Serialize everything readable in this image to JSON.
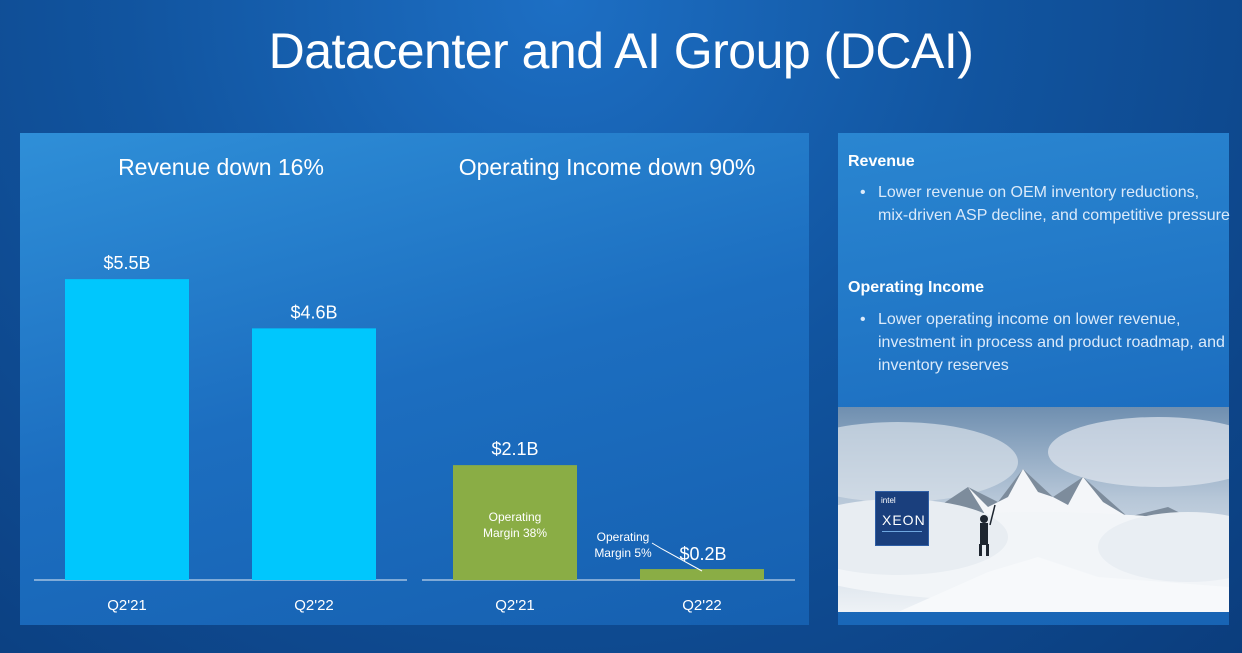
{
  "title": "Datacenter and AI Group (DCAI)",
  "chart_data": [
    {
      "type": "bar",
      "title": "Revenue down 16%",
      "categories": [
        "Q2'21",
        "Q2'22"
      ],
      "values": [
        5.5,
        4.6
      ],
      "value_labels": [
        "$5.5B",
        "$4.6B"
      ],
      "unit": "$B",
      "color": "#00c7fd"
    },
    {
      "type": "bar",
      "title": "Operating Income down 90%",
      "categories": [
        "Q2'21",
        "Q2'22"
      ],
      "values": [
        2.1,
        0.2
      ],
      "value_labels": [
        "$2.1B",
        "$0.2B"
      ],
      "annotations": [
        "Operating Margin 38%",
        "Operating Margin 5%"
      ],
      "unit": "$B",
      "color": "#8aad45"
    }
  ],
  "commentary": {
    "revenue": {
      "heading": "Revenue",
      "bullet": "Lower revenue on OEM inventory reductions, mix-driven ASP decline, and competitive pressure"
    },
    "operating_income": {
      "heading": "Operating Income",
      "bullet": "Lower operating income on lower revenue, investment in process and product roadmap, and inventory reserves"
    }
  },
  "photo": {
    "badge_brand": "intel",
    "badge_product": "XEON"
  },
  "colors": {
    "background": "#11549f",
    "revenue_bar": "#00c7fd",
    "income_bar": "#8aad45",
    "panel": "#1c6ec0"
  }
}
